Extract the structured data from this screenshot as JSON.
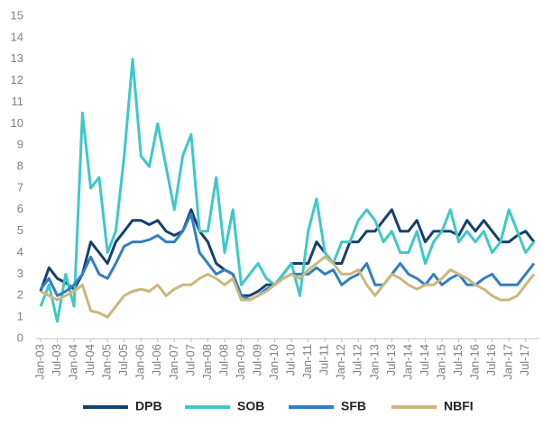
{
  "chart_data": {
    "type": "line",
    "categories": [
      "Jan-03",
      null,
      "Jul-03",
      null,
      "Jan-04",
      null,
      "Jul-04",
      null,
      "Jan-05",
      null,
      "Jul-05",
      null,
      "Jan-06",
      null,
      "Jul-06",
      null,
      "Jan-07",
      null,
      "Jul-07",
      null,
      "Jan-08",
      null,
      "Jul-08",
      null,
      "Jan-09",
      null,
      "Jul-09",
      null,
      "Jan-10",
      null,
      "Jul-10",
      null,
      "Jan-11",
      null,
      "Jul-11",
      null,
      "Jan-12",
      null,
      "Jul-12",
      null,
      "Jan-13",
      null,
      "Jul-13",
      null,
      "Jan-14",
      null,
      "Jul-14",
      null,
      "Jan-15",
      null,
      "Jul-15",
      null,
      "Jan-16",
      null,
      "Jul-16",
      null,
      "Jan-17",
      null,
      "Jul-17",
      null
    ],
    "series": [
      {
        "name": "DPB",
        "color": "#17406d",
        "values": [
          2.2,
          3.3,
          2.8,
          2.6,
          2.3,
          3.0,
          4.5,
          4.0,
          3.5,
          4.5,
          5.0,
          5.5,
          5.5,
          5.3,
          5.5,
          5.0,
          4.8,
          5.0,
          6.0,
          5.0,
          4.5,
          3.5,
          3.2,
          3.0,
          2.0,
          2.0,
          2.2,
          2.5,
          2.5,
          3.0,
          3.5,
          3.5,
          3.5,
          4.5,
          4.0,
          3.5,
          3.5,
          4.5,
          4.5,
          5.0,
          5.0,
          5.5,
          6.0,
          5.0,
          5.0,
          5.5,
          4.5,
          5.0,
          5.0,
          5.0,
          4.8,
          5.5,
          5.0,
          5.5,
          5.0,
          4.5,
          4.5,
          4.8,
          5.0,
          4.5
        ]
      },
      {
        "name": "SOB",
        "color": "#3ec9c6",
        "values": [
          1.5,
          2.5,
          0.8,
          3.0,
          1.5,
          10.5,
          7.0,
          7.5,
          4.0,
          5.0,
          8.5,
          13.0,
          8.5,
          8.0,
          10.0,
          8.0,
          6.0,
          8.5,
          9.5,
          5.0,
          5.0,
          7.5,
          4.0,
          6.0,
          2.5,
          3.0,
          3.5,
          2.8,
          2.5,
          3.0,
          3.5,
          2.0,
          5.0,
          6.5,
          4.0,
          3.5,
          4.5,
          4.5,
          5.5,
          6.0,
          5.5,
          4.5,
          5.0,
          4.0,
          4.0,
          5.0,
          3.5,
          4.5,
          5.0,
          6.0,
          4.5,
          5.0,
          4.5,
          5.0,
          4.0,
          4.5,
          6.0,
          5.0,
          4.0,
          4.5
        ]
      },
      {
        "name": "SFB",
        "color": "#2f7fc4",
        "values": [
          2.3,
          2.8,
          2.0,
          2.2,
          2.5,
          3.0,
          3.8,
          3.0,
          2.8,
          3.5,
          4.3,
          4.5,
          4.5,
          4.6,
          4.8,
          4.5,
          4.5,
          5.0,
          5.8,
          4.0,
          3.5,
          3.0,
          3.2,
          3.0,
          2.0,
          1.8,
          2.0,
          2.3,
          2.5,
          2.8,
          3.0,
          3.0,
          3.0,
          3.3,
          3.0,
          3.2,
          2.5,
          2.8,
          3.0,
          3.5,
          2.5,
          2.5,
          3.0,
          3.5,
          3.0,
          2.8,
          2.5,
          3.0,
          2.5,
          2.8,
          3.0,
          2.5,
          2.5,
          2.8,
          3.0,
          2.5,
          2.5,
          2.5,
          3.0,
          3.5
        ]
      },
      {
        "name": "NBFI",
        "color": "#cdb77c",
        "values": [
          2.2,
          2.0,
          1.8,
          2.0,
          2.2,
          2.5,
          1.3,
          1.2,
          1.0,
          1.5,
          2.0,
          2.2,
          2.3,
          2.2,
          2.5,
          2.0,
          2.3,
          2.5,
          2.5,
          2.8,
          3.0,
          2.8,
          2.5,
          2.8,
          1.8,
          1.8,
          2.0,
          2.2,
          2.5,
          2.8,
          3.0,
          2.8,
          3.2,
          3.5,
          3.8,
          3.5,
          3.0,
          3.0,
          3.2,
          2.5,
          2.0,
          2.5,
          3.0,
          2.8,
          2.5,
          2.3,
          2.5,
          2.5,
          2.8,
          3.2,
          3.0,
          2.8,
          2.5,
          2.3,
          2.0,
          1.8,
          1.8,
          2.0,
          2.5,
          3.0
        ]
      }
    ],
    "ylim": [
      0,
      15
    ],
    "yticks": [
      0,
      1,
      2,
      3,
      4,
      5,
      6,
      7,
      8,
      9,
      10,
      11,
      12,
      13,
      14,
      15
    ],
    "grid": false,
    "legend": "bottom"
  }
}
